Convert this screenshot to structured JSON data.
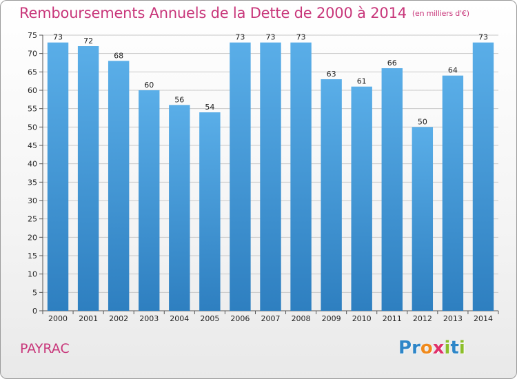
{
  "chart_data": {
    "type": "bar",
    "title": "Remboursements Annuels de la Dette de 2000 à 2014",
    "unit": "(en milliers d'€)",
    "categories": [
      "2000",
      "2001",
      "2002",
      "2003",
      "2004",
      "2005",
      "2006",
      "2007",
      "2008",
      "2009",
      "2010",
      "2011",
      "2012",
      "2013",
      "2014"
    ],
    "values": [
      73,
      72,
      68,
      60,
      56,
      54,
      73,
      73,
      73,
      63,
      61,
      66,
      50,
      64,
      73
    ],
    "ylim": [
      0,
      75
    ],
    "yticks": [
      0,
      5,
      10,
      15,
      20,
      25,
      30,
      35,
      40,
      45,
      50,
      55,
      60,
      65,
      70,
      75
    ],
    "xlabel": "",
    "ylabel": "",
    "grid": true,
    "colors": {
      "bar_top": "#5aaee8",
      "bar_bottom": "#2e7fc0",
      "title": "#c8367a",
      "grid": "#c8c8c8"
    }
  },
  "footer": {
    "commune": "PAYRAC",
    "logo_letters": [
      {
        "ch": "P",
        "color": "#2e86c8"
      },
      {
        "ch": "r",
        "color": "#2e86c8"
      },
      {
        "ch": "o",
        "color": "#f08a1c"
      },
      {
        "ch": "x",
        "color": "#e0306a"
      },
      {
        "ch": "i",
        "color": "#8cbe2a"
      },
      {
        "ch": "t",
        "color": "#2e86c8"
      },
      {
        "ch": "i",
        "color": "#8cbe2a"
      }
    ]
  }
}
